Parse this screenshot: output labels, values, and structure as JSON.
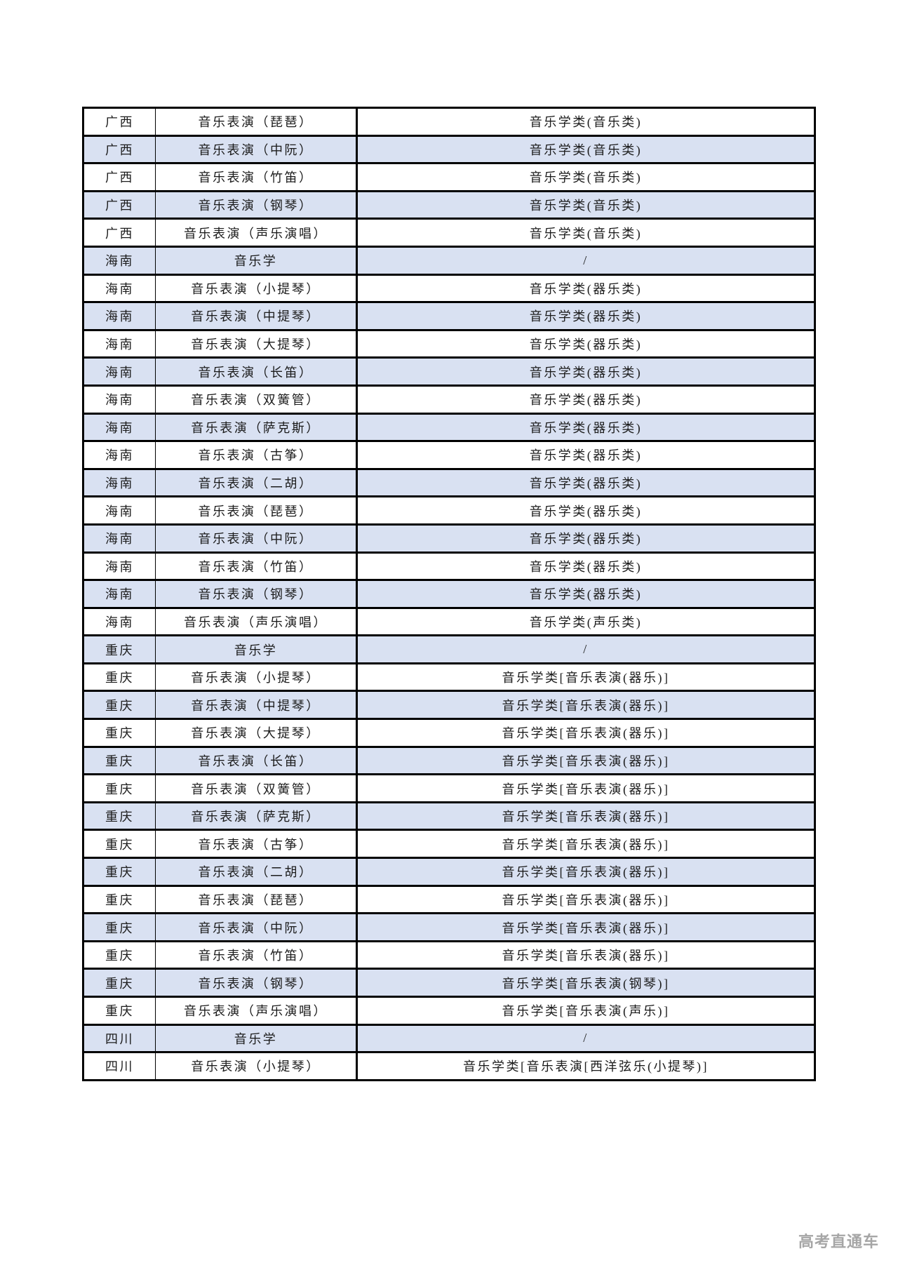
{
  "page": {
    "background": "#ffffff"
  },
  "table": {
    "columns": [
      "province",
      "program",
      "category"
    ],
    "stripe_colors": {
      "odd": "#ffffff",
      "even": "#d9e1f2"
    },
    "border_color": "#000000",
    "text_color": "#1c1c1c",
    "rows": [
      {
        "province": "广西",
        "program": "音乐表演（琵琶）",
        "category": "音乐学类(音乐类)"
      },
      {
        "province": "广西",
        "program": "音乐表演（中阮）",
        "category": "音乐学类(音乐类)"
      },
      {
        "province": "广西",
        "program": "音乐表演（竹笛）",
        "category": "音乐学类(音乐类)"
      },
      {
        "province": "广西",
        "program": "音乐表演（钢琴）",
        "category": "音乐学类(音乐类)"
      },
      {
        "province": "广西",
        "program": "音乐表演（声乐演唱）",
        "category": "音乐学类(音乐类)"
      },
      {
        "province": "海南",
        "program": "音乐学",
        "category": "/"
      },
      {
        "province": "海南",
        "program": "音乐表演（小提琴）",
        "category": "音乐学类(器乐类)"
      },
      {
        "province": "海南",
        "program": "音乐表演（中提琴）",
        "category": "音乐学类(器乐类)"
      },
      {
        "province": "海南",
        "program": "音乐表演（大提琴）",
        "category": "音乐学类(器乐类)"
      },
      {
        "province": "海南",
        "program": "音乐表演（长笛）",
        "category": "音乐学类(器乐类)"
      },
      {
        "province": "海南",
        "program": "音乐表演（双簧管）",
        "category": "音乐学类(器乐类)"
      },
      {
        "province": "海南",
        "program": "音乐表演（萨克斯）",
        "category": "音乐学类(器乐类)"
      },
      {
        "province": "海南",
        "program": "音乐表演（古筝）",
        "category": "音乐学类(器乐类)"
      },
      {
        "province": "海南",
        "program": "音乐表演（二胡）",
        "category": "音乐学类(器乐类)"
      },
      {
        "province": "海南",
        "program": "音乐表演（琵琶）",
        "category": "音乐学类(器乐类)"
      },
      {
        "province": "海南",
        "program": "音乐表演（中阮）",
        "category": "音乐学类(器乐类)"
      },
      {
        "province": "海南",
        "program": "音乐表演（竹笛）",
        "category": "音乐学类(器乐类)"
      },
      {
        "province": "海南",
        "program": "音乐表演（钢琴）",
        "category": "音乐学类(器乐类)"
      },
      {
        "province": "海南",
        "program": "音乐表演（声乐演唱）",
        "category": "音乐学类(声乐类)"
      },
      {
        "province": "重庆",
        "program": "音乐学",
        "category": "/"
      },
      {
        "province": "重庆",
        "program": "音乐表演（小提琴）",
        "category": "音乐学类[音乐表演(器乐)]"
      },
      {
        "province": "重庆",
        "program": "音乐表演（中提琴）",
        "category": "音乐学类[音乐表演(器乐)]"
      },
      {
        "province": "重庆",
        "program": "音乐表演（大提琴）",
        "category": "音乐学类[音乐表演(器乐)]"
      },
      {
        "province": "重庆",
        "program": "音乐表演（长笛）",
        "category": "音乐学类[音乐表演(器乐)]"
      },
      {
        "province": "重庆",
        "program": "音乐表演（双簧管）",
        "category": "音乐学类[音乐表演(器乐)]"
      },
      {
        "province": "重庆",
        "program": "音乐表演（萨克斯）",
        "category": "音乐学类[音乐表演(器乐)]"
      },
      {
        "province": "重庆",
        "program": "音乐表演（古筝）",
        "category": "音乐学类[音乐表演(器乐)]"
      },
      {
        "province": "重庆",
        "program": "音乐表演（二胡）",
        "category": "音乐学类[音乐表演(器乐)]"
      },
      {
        "province": "重庆",
        "program": "音乐表演（琵琶）",
        "category": "音乐学类[音乐表演(器乐)]"
      },
      {
        "province": "重庆",
        "program": "音乐表演（中阮）",
        "category": "音乐学类[音乐表演(器乐)]"
      },
      {
        "province": "重庆",
        "program": "音乐表演（竹笛）",
        "category": "音乐学类[音乐表演(器乐)]"
      },
      {
        "province": "重庆",
        "program": "音乐表演（钢琴）",
        "category": "音乐学类[音乐表演(钢琴)]"
      },
      {
        "province": "重庆",
        "program": "音乐表演（声乐演唱）",
        "category": "音乐学类[音乐表演(声乐)]"
      },
      {
        "province": "四川",
        "program": "音乐学",
        "category": "/"
      },
      {
        "province": "四川",
        "program": "音乐表演（小提琴）",
        "category": "音乐学类[音乐表演[西洋弦乐(小提琴)]"
      }
    ]
  },
  "watermark": {
    "text": "高考直通车",
    "color": "#a6a6a6"
  }
}
